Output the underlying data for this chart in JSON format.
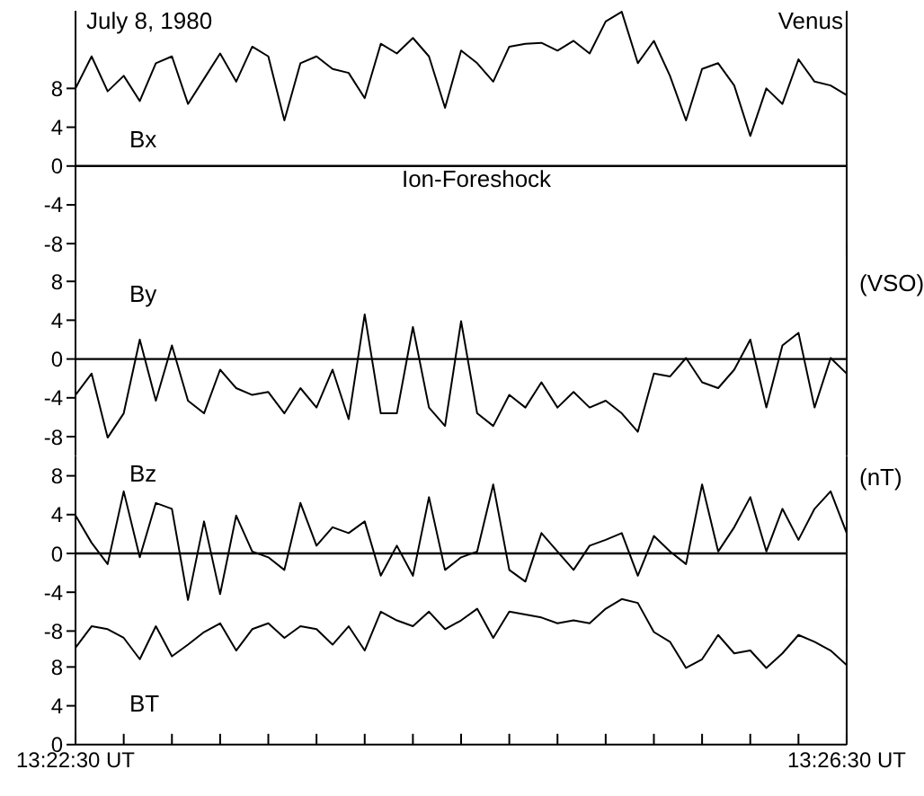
{
  "chart_data": [
    {
      "type": "line",
      "title": "July 8, 1980",
      "annotations": [
        "Venus",
        "Ion-Foreshock"
      ],
      "tick_labels": "y",
      "ylim": [
        -9.5,
        16
      ],
      "yticks": [
        8,
        4,
        0,
        -4,
        -8
      ],
      "ref_lines": [
        {
          "axis": "y",
          "value": 0,
          "color": "#000000"
        }
      ],
      "categories": [
        null,
        null,
        null,
        null,
        null,
        null,
        null,
        null,
        null,
        null,
        null,
        null,
        null,
        null,
        null,
        null,
        null,
        null,
        null,
        null,
        null,
        null,
        null,
        null,
        null,
        null,
        null,
        null,
        null,
        null,
        null,
        null,
        null,
        null,
        null,
        null,
        null,
        null,
        null,
        null,
        null,
        null,
        null,
        null,
        null,
        null,
        null,
        null,
        null
      ],
      "series": [
        {
          "name": "Bx",
          "color": "#000000",
          "values": [
            8.0,
            11.3,
            7.7,
            9.3,
            6.7,
            10.6,
            11.3,
            6.4,
            9.0,
            11.6,
            8.7,
            12.3,
            11.3,
            4.7,
            10.6,
            11.3,
            10.0,
            9.6,
            7.0,
            12.6,
            11.6,
            13.2,
            11.3,
            6.0,
            11.9,
            10.6,
            8.7,
            12.3,
            12.6,
            12.7,
            11.9,
            12.9,
            11.6,
            14.9,
            15.9,
            10.6,
            12.9,
            9.3,
            4.7,
            10.0,
            10.6,
            8.3,
            3.1,
            8.0,
            6.4,
            11.0,
            8.7,
            8.3,
            7.3
          ]
        }
      ]
    },
    {
      "type": "line",
      "ylabel": "(VSO)",
      "tick_labels": "y",
      "ylim": [
        -10,
        12
      ],
      "yticks": [
        8,
        4,
        0,
        -4,
        -8
      ],
      "ref_lines": [
        {
          "axis": "y",
          "value": 0,
          "color": "#000000"
        }
      ],
      "categories": [
        null,
        null,
        null,
        null,
        null,
        null,
        null,
        null,
        null,
        null,
        null,
        null,
        null,
        null,
        null,
        null,
        null,
        null,
        null,
        null,
        null,
        null,
        null,
        null,
        null,
        null,
        null,
        null,
        null,
        null,
        null,
        null,
        null,
        null,
        null,
        null,
        null,
        null,
        null,
        null,
        null,
        null,
        null,
        null,
        null,
        null,
        null,
        null,
        null
      ],
      "series": [
        {
          "name": "By",
          "color": "#000000",
          "values": [
            -3.7,
            -1.5,
            -8.1,
            -5.6,
            2.0,
            -4.3,
            1.4,
            -4.3,
            -5.6,
            -1.1,
            -3.0,
            -3.7,
            -3.4,
            -5.6,
            -3.0,
            -5.0,
            -1.1,
            -6.2,
            4.6,
            -5.6,
            -5.6,
            3.3,
            -5.0,
            -6.9,
            3.9,
            -5.6,
            -6.9,
            -3.7,
            -5.0,
            -2.4,
            -5.0,
            -3.4,
            -5.0,
            -4.3,
            -5.6,
            -7.5,
            -1.5,
            -1.8,
            0.1,
            -2.4,
            -3.0,
            -1.1,
            2.0,
            -5.0,
            1.4,
            2.7,
            -5.0,
            0.1,
            -1.5
          ]
        }
      ]
    },
    {
      "type": "line",
      "ylabel": "(nT)",
      "tick_labels": "y",
      "ylim": [
        -9.5,
        10
      ],
      "yticks": [
        8,
        4,
        0,
        -4,
        -8
      ],
      "ref_lines": [
        {
          "axis": "y",
          "value": 0,
          "color": "#000000"
        }
      ],
      "categories": [
        null,
        null,
        null,
        null,
        null,
        null,
        null,
        null,
        null,
        null,
        null,
        null,
        null,
        null,
        null,
        null,
        null,
        null,
        null,
        null,
        null,
        null,
        null,
        null,
        null,
        null,
        null,
        null,
        null,
        null,
        null,
        null,
        null,
        null,
        null,
        null,
        null,
        null,
        null,
        null,
        null,
        null,
        null,
        null,
        null,
        null,
        null,
        null,
        null
      ],
      "series": [
        {
          "name": "Bz",
          "color": "#000000",
          "values": [
            3.9,
            1.1,
            -1.1,
            6.4,
            -0.4,
            5.2,
            4.6,
            -4.8,
            3.3,
            -4.2,
            3.9,
            0.2,
            -0.4,
            -1.7,
            5.2,
            0.8,
            2.7,
            2.1,
            3.3,
            -2.3,
            0.8,
            -2.3,
            5.8,
            -1.7,
            -0.4,
            0.2,
            7.1,
            -1.7,
            -2.9,
            2.1,
            0.2,
            -1.7,
            0.8,
            1.4,
            2.1,
            -2.3,
            1.8,
            0.2,
            -1.1,
            7.1,
            0.2,
            2.7,
            5.8,
            0.2,
            4.6,
            1.4,
            4.6,
            6.4,
            2.1
          ]
        }
      ]
    },
    {
      "type": "line",
      "ylim": [
        0,
        16
      ],
      "yticks": [
        8,
        4,
        0
      ],
      "categories": [
        "13:22:30 UT",
        null,
        null,
        null,
        null,
        null,
        null,
        null,
        null,
        null,
        null,
        null,
        null,
        null,
        null,
        null,
        null,
        null,
        null,
        null,
        null,
        null,
        null,
        null,
        null,
        null,
        null,
        null,
        null,
        null,
        null,
        null,
        null,
        null,
        null,
        null,
        null,
        null,
        null,
        null,
        null,
        null,
        null,
        null,
        null,
        null,
        null,
        null,
        "13:26:30 UT"
      ],
      "series": [
        {
          "name": "BT",
          "color": "#000000",
          "values": [
            10.0,
            12.2,
            11.9,
            11.0,
            8.8,
            12.2,
            9.1,
            10.3,
            11.6,
            12.5,
            9.7,
            11.9,
            12.5,
            11.0,
            12.2,
            11.9,
            10.3,
            12.2,
            9.7,
            13.7,
            12.8,
            12.2,
            13.7,
            11.9,
            12.8,
            14.0,
            11.0,
            13.7,
            13.4,
            13.1,
            12.5,
            12.8,
            12.5,
            14.0,
            15.0,
            14.6,
            11.6,
            10.6,
            7.9,
            8.8,
            11.3,
            9.4,
            9.7,
            7.9,
            9.4,
            11.3,
            10.6,
            9.7,
            8.2
          ]
        }
      ]
    }
  ]
}
